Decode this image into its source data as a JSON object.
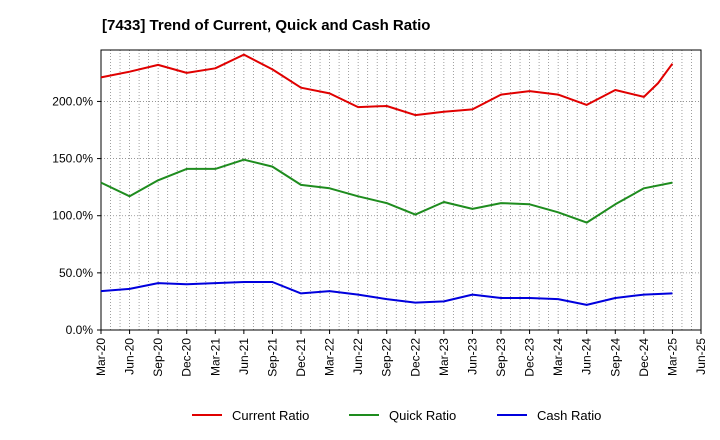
{
  "chart_data": {
    "type": "line",
    "title": "[7433]  Trend of Current, Quick and Cash Ratio",
    "xlabel": "",
    "ylabel": "",
    "ylim": [
      0,
      245
    ],
    "yticks": [
      0,
      50,
      100,
      150,
      200
    ],
    "ytick_labels": [
      "0.0%",
      "50.0%",
      "100.0%",
      "150.0%",
      "200.0%"
    ],
    "x_tick_labels": [
      "Mar-20",
      "Jun-20",
      "Sep-20",
      "Dec-20",
      "Mar-21",
      "Jun-21",
      "Sep-21",
      "Dec-21",
      "Mar-22",
      "Jun-22",
      "Sep-22",
      "Dec-22",
      "Mar-23",
      "Jun-23",
      "Sep-23",
      "Dec-23",
      "Mar-24",
      "Jun-24",
      "Sep-24",
      "Dec-24",
      "Mar-25",
      "Jun-25"
    ],
    "grid": true,
    "legend_position": "bottom",
    "series": [
      {
        "name": "Current Ratio",
        "color": "#e00000",
        "points": [
          [
            0,
            221
          ],
          [
            1,
            226
          ],
          [
            2,
            232
          ],
          [
            3,
            225
          ],
          [
            4,
            229
          ],
          [
            5,
            241
          ],
          [
            6,
            228
          ],
          [
            7,
            212
          ],
          [
            8,
            207
          ],
          [
            9,
            195
          ],
          [
            10,
            196
          ],
          [
            11,
            188
          ],
          [
            12,
            191
          ],
          [
            13,
            193
          ],
          [
            14,
            206
          ],
          [
            15,
            209
          ],
          [
            16,
            206
          ],
          [
            17,
            197
          ],
          [
            18,
            210
          ],
          [
            19,
            204
          ],
          [
            19.5,
            216
          ],
          [
            20,
            233
          ]
        ]
      },
      {
        "name": "Quick Ratio",
        "color": "#1e8c1e",
        "points": [
          [
            0,
            129
          ],
          [
            1,
            117
          ],
          [
            2,
            131
          ],
          [
            3,
            141
          ],
          [
            4,
            141
          ],
          [
            5,
            149
          ],
          [
            6,
            143
          ],
          [
            7,
            127
          ],
          [
            8,
            124
          ],
          [
            9,
            117
          ],
          [
            10,
            111
          ],
          [
            11,
            101
          ],
          [
            12,
            112
          ],
          [
            13,
            106
          ],
          [
            14,
            111
          ],
          [
            15,
            110
          ],
          [
            16,
            103
          ],
          [
            17,
            94
          ],
          [
            18,
            110
          ],
          [
            19,
            124
          ],
          [
            20,
            129
          ]
        ]
      },
      {
        "name": "Cash Ratio",
        "color": "#0000dd",
        "points": [
          [
            0,
            34
          ],
          [
            1,
            36
          ],
          [
            2,
            41
          ],
          [
            3,
            40
          ],
          [
            4,
            41
          ],
          [
            5,
            42
          ],
          [
            6,
            42
          ],
          [
            7,
            32
          ],
          [
            8,
            34
          ],
          [
            9,
            31
          ],
          [
            10,
            27
          ],
          [
            11,
            24
          ],
          [
            12,
            25
          ],
          [
            13,
            31
          ],
          [
            14,
            28
          ],
          [
            15,
            28
          ],
          [
            16,
            27
          ],
          [
            17,
            22
          ],
          [
            18,
            28
          ],
          [
            19,
            31
          ],
          [
            20,
            32
          ]
        ]
      }
    ]
  }
}
